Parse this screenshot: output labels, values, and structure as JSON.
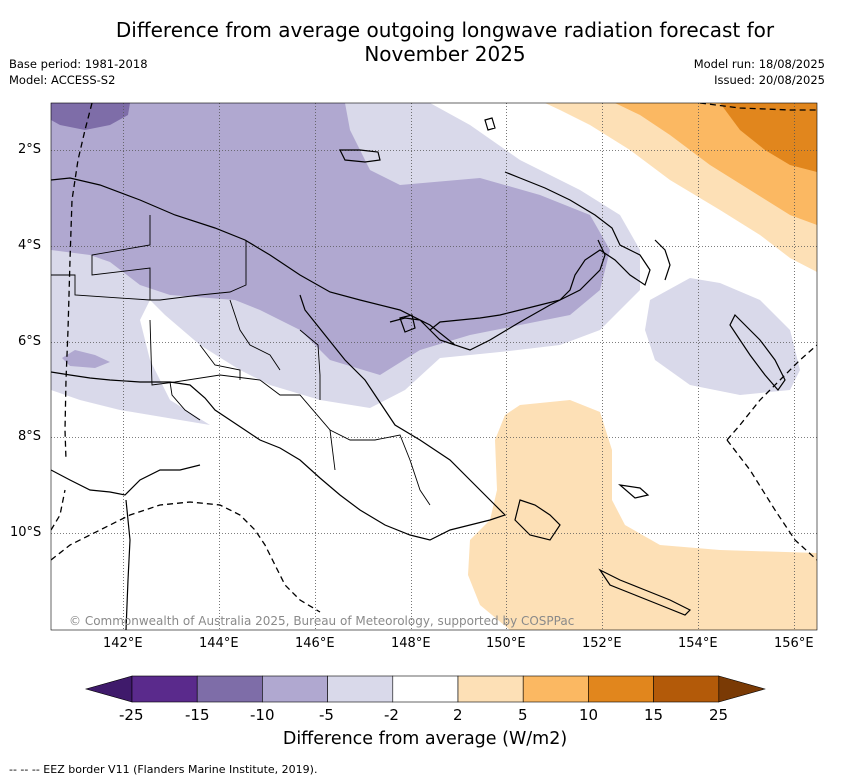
{
  "title_line1": "Difference from average outgoing longwave radiation forecast for",
  "title_line2": "November 2025",
  "left_meta": {
    "base_period": "Base period: 1981-2018",
    "model": "Model: ACCESS-S2"
  },
  "right_meta": {
    "model_run": "Model run: 18/08/2025",
    "issued": "Issued: 20/08/2025"
  },
  "map": {
    "lat_ticks": [
      "2°S",
      "4°S",
      "6°S",
      "8°S",
      "10°S"
    ],
    "lon_ticks": [
      "142°E",
      "144°E",
      "146°E",
      "148°E",
      "150°E",
      "152°E",
      "154°E",
      "156°E"
    ],
    "copyright": "© Commonwealth of Australia 2025, Bureau of Meteorology, supported by COSPPac"
  },
  "colorbar": {
    "labels": [
      "-25",
      "-15",
      "-10",
      "-5",
      "-2",
      "2",
      "5",
      "10",
      "15",
      "25"
    ],
    "colors": [
      "#3f1a6b",
      "#5a2a8c",
      "#7e6da8",
      "#b0a8d0",
      "#d9d9ea",
      "#ffffff",
      "#fde0b6",
      "#fbb862",
      "#e1861d",
      "#b35a09",
      "#7a3a05"
    ],
    "title": "Difference from average (W/m2)"
  },
  "legend_note": "--  --  -- EEZ border V11 (Flanders Marine Institute, 2019)."
}
